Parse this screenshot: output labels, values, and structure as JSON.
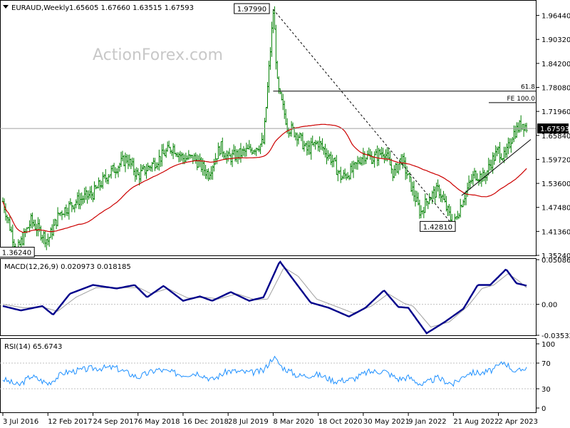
{
  "chart_data": [
    {
      "type": "ohlc",
      "panel": "price",
      "title": "EURAUD,Weekly",
      "ohlc": "1.65605 1.67660 1.63515 1.67593",
      "watermark": "ActionForex.com",
      "ylim": [
        1.3524,
        2.0
      ],
      "y_ticks": [
        "1.96440",
        "1.90320",
        "1.84200",
        "1.78080",
        "1.71960",
        "1.65840",
        "1.59720",
        "1.53600",
        "1.47480",
        "1.41360",
        "1.35240"
      ],
      "y_tick_values": [
        1.9644,
        1.9032,
        1.842,
        1.7808,
        1.7196,
        1.6584,
        1.5972,
        1.536,
        1.4748,
        1.4136,
        1.3524
      ],
      "last_price_label": "1.67593",
      "last_price": 1.67593,
      "annotations": {
        "high_label": "1.97990",
        "high_value": 1.9799,
        "high_date": "9 Mar 2020",
        "low1_label": "1.36240",
        "low1_value": 1.3624,
        "low1_date": "Sep 2016",
        "low2_label": "1.42810",
        "low2_value": 1.4281,
        "low2_date": "Aug 2022",
        "fib_label": "61.8",
        "fib_value": 1.7713,
        "fe_label": "FE 100.0",
        "fe_value": 1.7419
      },
      "price_anchors": [
        [
          "2016-07-03",
          1.49
        ],
        [
          "2016-09-10",
          1.3624
        ],
        [
          "2016-11-20",
          1.44
        ],
        [
          "2017-02-12",
          1.39
        ],
        [
          "2017-04-10",
          1.46
        ],
        [
          "2017-07-01",
          1.49
        ],
        [
          "2017-09-24",
          1.51
        ],
        [
          "2017-12-10",
          1.56
        ],
        [
          "2018-03-10",
          1.6
        ],
        [
          "2018-05-06",
          1.555
        ],
        [
          "2018-08-20",
          1.6
        ],
        [
          "2018-10-25",
          1.63
        ],
        [
          "2018-12-16",
          1.6
        ],
        [
          "2019-02-10",
          1.6
        ],
        [
          "2019-04-20",
          1.56
        ],
        [
          "2019-06-20",
          1.63
        ],
        [
          "2019-07-28",
          1.6
        ],
        [
          "2019-11-10",
          1.62
        ],
        [
          "2020-01-20",
          1.64
        ],
        [
          "2020-03-09",
          1.9799
        ],
        [
          "2020-03-30",
          1.78
        ],
        [
          "2020-05-20",
          1.68
        ],
        [
          "2020-07-10",
          1.66
        ],
        [
          "2020-08-20",
          1.62
        ],
        [
          "2020-10-18",
          1.64
        ],
        [
          "2020-12-20",
          1.6
        ],
        [
          "2021-02-10",
          1.55
        ],
        [
          "2021-04-10",
          1.57
        ],
        [
          "2021-05-30",
          1.61
        ],
        [
          "2021-07-20",
          1.6
        ],
        [
          "2021-09-10",
          1.62
        ],
        [
          "2021-10-28",
          1.56
        ],
        [
          "2021-12-05",
          1.6
        ],
        [
          "2022-01-09",
          1.55
        ],
        [
          "2022-03-10",
          1.46
        ],
        [
          "2022-04-20",
          1.5
        ],
        [
          "2022-06-10",
          1.52
        ],
        [
          "2022-08-21",
          1.4281
        ],
        [
          "2022-10-10",
          1.5
        ],
        [
          "2022-12-05",
          1.56
        ],
        [
          "2023-01-20",
          1.55
        ],
        [
          "2023-02-25",
          1.59
        ],
        [
          "2023-04-02",
          1.62
        ],
        [
          "2023-05-05",
          1.6
        ],
        [
          "2023-06-10",
          1.66
        ],
        [
          "2023-07-30",
          1.69
        ],
        [
          "2023-08-25",
          1.67593
        ]
      ]
    },
    {
      "type": "line",
      "panel": "macd",
      "title": "MACD(12,26,9) 0.020973 0.018185",
      "ylim": [
        -0.0353,
        0.0509
      ],
      "y_ticks": [
        "0.050863",
        "0.00",
        "-0.035322"
      ],
      "y_tick_values": [
        0.050863,
        0.0,
        -0.035322
      ],
      "macd_anchors": [
        [
          "2016-07-03",
          -0.002
        ],
        [
          "2016-10-01",
          -0.007
        ],
        [
          "2017-01-15",
          -0.002
        ],
        [
          "2017-03-10",
          -0.012
        ],
        [
          "2017-06-01",
          0.012
        ],
        [
          "2017-09-24",
          0.022
        ],
        [
          "2018-01-20",
          0.018
        ],
        [
          "2018-04-20",
          0.022
        ],
        [
          "2018-06-20",
          0.008
        ],
        [
          "2018-09-10",
          0.021
        ],
        [
          "2018-12-16",
          0.004
        ],
        [
          "2019-03-10",
          0.009
        ],
        [
          "2019-05-10",
          0.004
        ],
        [
          "2019-08-10",
          0.014
        ],
        [
          "2019-11-10",
          0.004
        ],
        [
          "2020-01-20",
          0.008
        ],
        [
          "2020-04-10",
          0.049
        ],
        [
          "2020-06-10",
          0.03
        ],
        [
          "2020-09-10",
          0.002
        ],
        [
          "2020-12-10",
          -0.004
        ],
        [
          "2021-03-20",
          -0.014
        ],
        [
          "2021-06-10",
          -0.004
        ],
        [
          "2021-09-10",
          0.016
        ],
        [
          "2021-11-20",
          -0.003
        ],
        [
          "2022-01-09",
          -0.004
        ],
        [
          "2022-04-10",
          -0.033
        ],
        [
          "2022-07-10",
          -0.02
        ],
        [
          "2022-10-10",
          -0.005
        ],
        [
          "2022-12-20",
          0.022
        ],
        [
          "2023-02-20",
          0.022
        ],
        [
          "2023-05-10",
          0.04
        ],
        [
          "2023-06-30",
          0.024
        ],
        [
          "2023-08-25",
          0.021
        ]
      ],
      "signal_anchors": [
        [
          "2016-07-03",
          0.0
        ],
        [
          "2016-10-15",
          -0.004
        ],
        [
          "2017-01-15",
          -0.003
        ],
        [
          "2017-04-01",
          -0.008
        ],
        [
          "2017-07-01",
          0.008
        ],
        [
          "2017-10-10",
          0.019
        ],
        [
          "2018-02-10",
          0.019
        ],
        [
          "2018-05-10",
          0.019
        ],
        [
          "2018-07-10",
          0.012
        ],
        [
          "2018-10-01",
          0.018
        ],
        [
          "2019-01-10",
          0.007
        ],
        [
          "2019-04-10",
          0.008
        ],
        [
          "2019-06-10",
          0.006
        ],
        [
          "2019-09-10",
          0.012
        ],
        [
          "2019-12-10",
          0.005
        ],
        [
          "2020-02-10",
          0.006
        ],
        [
          "2020-05-01",
          0.042
        ],
        [
          "2020-07-10",
          0.032
        ],
        [
          "2020-10-10",
          0.006
        ],
        [
          "2021-01-10",
          -0.002
        ],
        [
          "2021-04-10",
          -0.01
        ],
        [
          "2021-07-10",
          -0.002
        ],
        [
          "2021-10-01",
          0.012
        ],
        [
          "2021-12-20",
          0.001
        ],
        [
          "2022-02-01",
          -0.002
        ],
        [
          "2022-05-01",
          -0.026
        ],
        [
          "2022-08-01",
          -0.02
        ],
        [
          "2022-11-01",
          -0.002
        ],
        [
          "2023-01-10",
          0.018
        ],
        [
          "2023-03-10",
          0.022
        ],
        [
          "2023-05-20",
          0.035
        ],
        [
          "2023-07-10",
          0.027
        ],
        [
          "2023-08-25",
          0.018
        ]
      ]
    },
    {
      "type": "line",
      "panel": "rsi",
      "title": "RSI(14) 65.6743",
      "ylim": [
        0,
        100
      ],
      "y_ticks": [
        "100",
        "70",
        "30",
        "0"
      ],
      "y_tick_values": [
        100,
        70,
        30,
        0
      ],
      "rsi_anchors": [
        [
          "2016-07-03",
          45
        ],
        [
          "2016-09-20",
          35
        ],
        [
          "2016-11-20",
          50
        ],
        [
          "2017-02-12",
          38
        ],
        [
          "2017-05-01",
          55
        ],
        [
          "2017-09-24",
          62
        ],
        [
          "2018-01-10",
          63
        ],
        [
          "2018-05-06",
          48
        ],
        [
          "2018-08-10",
          60
        ],
        [
          "2018-12-16",
          52
        ],
        [
          "2019-03-01",
          55
        ],
        [
          "2019-05-10",
          44
        ],
        [
          "2019-07-28",
          58
        ],
        [
          "2019-11-20",
          55
        ],
        [
          "2020-01-20",
          58
        ],
        [
          "2020-03-09",
          80
        ],
        [
          "2020-04-20",
          64
        ],
        [
          "2020-07-10",
          50
        ],
        [
          "2020-10-18",
          52
        ],
        [
          "2021-01-10",
          42
        ],
        [
          "2021-04-10",
          45
        ],
        [
          "2021-06-20",
          56
        ],
        [
          "2021-09-10",
          58
        ],
        [
          "2021-11-20",
          45
        ],
        [
          "2022-01-09",
          48
        ],
        [
          "2022-03-20",
          36
        ],
        [
          "2022-06-01",
          47
        ],
        [
          "2022-08-21",
          37
        ],
        [
          "2022-11-01",
          55
        ],
        [
          "2023-01-20",
          55
        ],
        [
          "2023-03-10",
          60
        ],
        [
          "2023-05-01",
          72
        ],
        [
          "2023-07-01",
          55
        ],
        [
          "2023-08-25",
          65.67
        ]
      ]
    }
  ],
  "x_axis": {
    "labels": [
      "3 Jul 2016",
      "12 Feb 2017",
      "24 Sep 2017",
      "6 May 2018",
      "16 Dec 2018",
      "28 Jul 2019",
      "8 Mar 2020",
      "18 Oct 2020",
      "30 May 2021",
      "9 Jan 2022",
      "21 Aug 2022",
      "2 Apr 2023"
    ],
    "dates": [
      "2016-07-03",
      "2017-02-12",
      "2017-09-24",
      "2018-05-06",
      "2018-12-16",
      "2019-07-28",
      "2020-03-08",
      "2020-10-18",
      "2021-05-30",
      "2022-01-09",
      "2022-08-21",
      "2023-04-02"
    ],
    "start": "2016-07-03",
    "end": "2023-09-10"
  },
  "colors": {
    "price_bars": "#008000",
    "moving_average": "#cc0000",
    "macd": "#00008b",
    "signal": "#a0a0a0",
    "rsi": "#1e90ff",
    "watermark": "#c8c8c8",
    "grid": "#c0c0c0"
  }
}
